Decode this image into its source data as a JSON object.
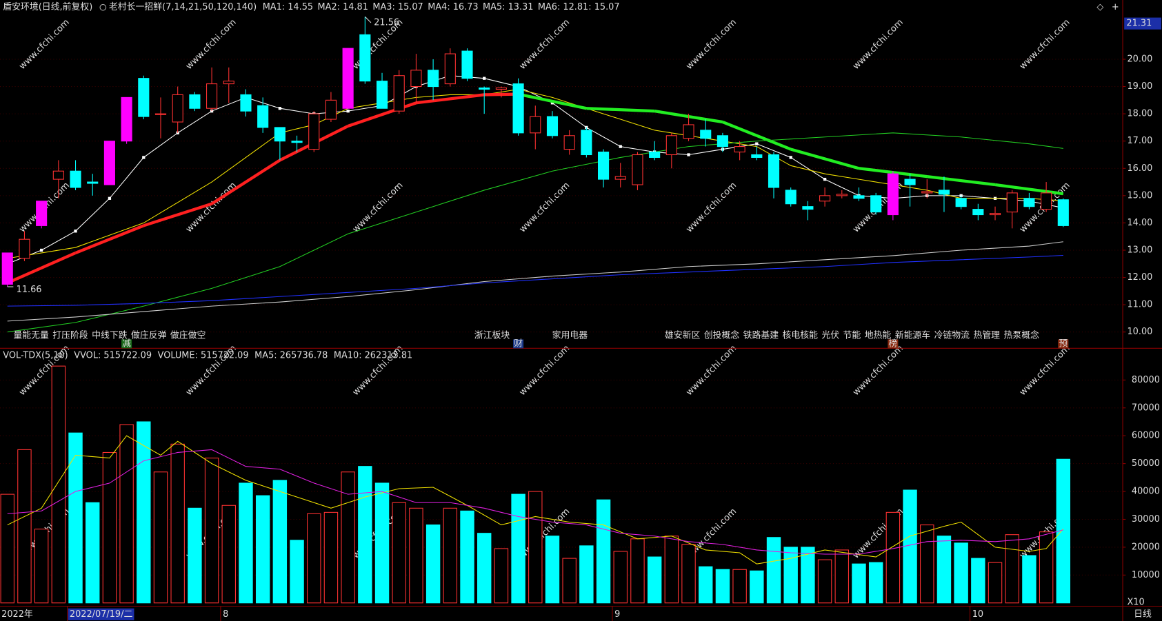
{
  "header": {
    "title": "盾安环境(日线,前复权)",
    "indicator": "老村长一招鲜(7,14,21,50,120,140)"
  },
  "watermark": "www.cfchi.com",
  "chart_data": [
    {
      "type": "candlestick",
      "up_color": "#ff3232",
      "down_color": "#00ffff",
      "limit_color": "#ff00ff",
      "limit_up": [
        0,
        2,
        6,
        7,
        20,
        52
      ],
      "open": [
        11.75,
        12.7,
        13.9,
        15.6,
        15.9,
        15.5,
        15.4,
        17.0,
        19.3,
        18.0,
        17.7,
        18.7,
        18.2,
        19.1,
        18.7,
        18.3,
        17.5,
        17.0,
        16.7,
        17.8,
        18.2,
        20.9,
        19.2,
        18.1,
        19.0,
        19.6,
        19.1,
        20.3,
        18.95,
        18.9,
        19.1,
        17.3,
        17.9,
        16.7,
        17.4,
        16.6,
        15.6,
        15.4,
        16.6,
        16.5,
        17.1,
        17.4,
        17.2,
        16.6,
        16.5,
        16.5,
        15.2,
        14.6,
        14.8,
        15.0,
        15.0,
        15.0,
        14.3,
        15.6,
        15.1,
        15.2,
        14.9,
        14.5,
        14.3,
        14.4,
        14.9,
        14.5,
        14.85
      ],
      "high": [
        12.9,
        13.7,
        14.8,
        16.3,
        16.3,
        15.8,
        17.0,
        18.6,
        19.4,
        18.6,
        19.0,
        18.8,
        19.7,
        19.7,
        18.9,
        18.6,
        17.5,
        17.2,
        18.1,
        18.8,
        20.4,
        21.56,
        19.5,
        19.6,
        20.2,
        20.0,
        20.4,
        20.4,
        19.0,
        19.0,
        19.3,
        18.3,
        18.1,
        17.4,
        17.5,
        16.7,
        16.2,
        16.6,
        17.0,
        17.3,
        18.0,
        17.8,
        17.3,
        17.0,
        16.8,
        16.6,
        15.3,
        14.8,
        15.3,
        15.2,
        15.3,
        15.1,
        15.9,
        15.8,
        15.6,
        15.7,
        15.0,
        14.7,
        14.6,
        15.2,
        15.1,
        15.5,
        14.9
      ],
      "low": [
        11.66,
        12.6,
        13.8,
        14.9,
        15.2,
        15.0,
        15.4,
        16.9,
        17.8,
        17.1,
        17.3,
        18.1,
        18.1,
        18.4,
        17.9,
        17.3,
        16.3,
        16.6,
        16.6,
        17.7,
        18.2,
        19.1,
        18.2,
        18.0,
        18.4,
        18.5,
        19.0,
        19.2,
        18.0,
        18.6,
        17.2,
        16.7,
        17.1,
        16.5,
        16.4,
        15.3,
        15.3,
        15.2,
        16.3,
        16.0,
        17.0,
        16.8,
        16.6,
        16.3,
        16.3,
        14.9,
        14.6,
        14.1,
        14.6,
        14.9,
        14.8,
        14.3,
        14.1,
        14.6,
        14.9,
        14.4,
        14.5,
        14.1,
        14.1,
        13.8,
        14.5,
        14.4,
        13.85
      ],
      "close": [
        12.9,
        13.4,
        14.8,
        15.9,
        15.3,
        15.45,
        17.0,
        18.6,
        17.9,
        18.0,
        18.7,
        18.2,
        19.1,
        19.2,
        18.1,
        17.5,
        17.0,
        16.95,
        18.0,
        18.5,
        20.4,
        19.2,
        18.2,
        19.4,
        19.6,
        19.0,
        20.2,
        19.3,
        18.9,
        18.95,
        17.3,
        17.9,
        17.2,
        17.2,
        16.5,
        15.6,
        15.7,
        16.5,
        16.4,
        17.2,
        17.6,
        17.1,
        16.8,
        16.8,
        16.4,
        15.3,
        14.7,
        14.5,
        15.0,
        15.05,
        14.9,
        14.4,
        15.8,
        15.4,
        15.15,
        15.05,
        14.6,
        14.3,
        14.35,
        15.1,
        14.6,
        15.1,
        13.9
      ],
      "series": [
        {
          "name": "MA1: 14.55",
          "color": "#ffffff",
          "dots": true,
          "x": [
            0,
            2,
            4,
            6,
            8,
            10,
            12,
            14,
            16,
            18,
            20,
            22,
            24,
            26,
            28,
            30,
            32,
            34,
            36,
            38,
            40,
            42,
            44,
            46,
            48,
            50,
            52,
            54,
            56,
            58,
            60,
            62
          ],
          "values": [
            12.5,
            13.0,
            13.7,
            14.9,
            16.4,
            17.3,
            18.1,
            18.6,
            18.2,
            18.0,
            18.1,
            18.3,
            19.0,
            19.4,
            19.3,
            19.0,
            18.4,
            17.5,
            16.8,
            16.6,
            16.5,
            16.7,
            16.9,
            16.4,
            15.6,
            15.0,
            14.9,
            15.0,
            15.0,
            14.9,
            14.8,
            14.55
          ]
        },
        {
          "name": "MA2: 14.81",
          "color": "#f0e000",
          "x": [
            0,
            4,
            8,
            12,
            14,
            16,
            18,
            20,
            22,
            24,
            26,
            28,
            30,
            32,
            34,
            36,
            38,
            40,
            42,
            44,
            46,
            48,
            50,
            52,
            54,
            56,
            58,
            60,
            62
          ],
          "values": [
            12.7,
            13.1,
            14.0,
            15.5,
            16.4,
            17.3,
            17.6,
            18.2,
            18.4,
            18.6,
            18.7,
            18.7,
            18.9,
            18.6,
            18.2,
            17.8,
            17.4,
            17.2,
            17.0,
            16.8,
            16.1,
            15.8,
            15.6,
            15.4,
            15.2,
            14.9,
            14.9,
            14.9,
            14.81
          ]
        },
        {
          "name": "MA3: 15.07",
          "color": "#ff2020",
          "down_color": "#22ee22",
          "trend_label": ": 15.07",
          "width": 4,
          "x": [
            0,
            4,
            8,
            12,
            16,
            20,
            24,
            28,
            30,
            34,
            38,
            42,
            46,
            50,
            54,
            58,
            62
          ],
          "values": [
            11.8,
            12.9,
            13.9,
            14.7,
            16.3,
            17.55,
            18.4,
            18.7,
            18.72,
            18.2,
            18.1,
            17.7,
            16.7,
            16.0,
            15.7,
            15.4,
            15.07
          ]
        },
        {
          "name": "MA4: 16.73",
          "color": "#22cc22",
          "x": [
            0,
            4,
            8,
            12,
            16,
            20,
            24,
            28,
            32,
            36,
            40,
            44,
            48,
            52,
            56,
            60,
            62
          ],
          "values": [
            10.0,
            10.35,
            10.95,
            11.6,
            12.4,
            13.6,
            14.4,
            15.2,
            15.9,
            16.4,
            16.8,
            17.0,
            17.15,
            17.3,
            17.15,
            16.9,
            16.73
          ]
        },
        {
          "name": "MA5: 13.31",
          "color": "#cccccc",
          "x": [
            0,
            4,
            8,
            12,
            16,
            20,
            24,
            28,
            32,
            36,
            40,
            44,
            48,
            52,
            56,
            60,
            62
          ],
          "values": [
            10.4,
            10.55,
            10.75,
            10.95,
            11.1,
            11.3,
            11.55,
            11.85,
            12.05,
            12.2,
            12.4,
            12.5,
            12.65,
            12.8,
            13.0,
            13.15,
            13.31
          ]
        },
        {
          "name": "MA6: 12.81",
          "color": "#2030ff",
          "x": [
            0,
            4,
            8,
            12,
            16,
            20,
            24,
            28,
            32,
            36,
            40,
            44,
            48,
            52,
            56,
            60,
            62
          ],
          "values": [
            10.95,
            10.98,
            11.05,
            11.15,
            11.3,
            11.45,
            11.6,
            11.8,
            11.95,
            12.1,
            12.2,
            12.3,
            12.4,
            12.55,
            12.65,
            12.75,
            12.81
          ]
        }
      ],
      "annotations": [
        {
          "x": 21,
          "value": 21.56
        },
        {
          "x": 0,
          "value": 11.66
        }
      ],
      "concepts": [
        "量能无量",
        "打压阶段",
        "中线下跌",
        "做庄反弹",
        "做庄做空",
        "浙江板块",
        "家用电器",
        "雄安新区",
        "创投概念",
        "铁路基建",
        "核电核能",
        "光伏",
        "节能",
        "地热能",
        "新能源车",
        "冷链物流",
        "热管理",
        "热泵概念"
      ],
      "badges": [
        "减",
        "财",
        "榜",
        "预"
      ],
      "ylim": [
        9.3,
        21.7
      ],
      "yticks": [
        {
          "value": 10,
          "label": "10.00"
        },
        {
          "value": 11,
          "label": "11.00"
        },
        {
          "value": 12,
          "label": "12.00"
        },
        {
          "value": 13,
          "label": "13.00"
        },
        {
          "value": 14,
          "label": "14.00"
        },
        {
          "value": 15,
          "label": "15.00"
        },
        {
          "value": 16,
          "label": "16.00"
        },
        {
          "value": 17,
          "label": "17.00"
        },
        {
          "value": 18,
          "label": "18.00"
        },
        {
          "value": 19,
          "label": "19.00"
        },
        {
          "value": 20,
          "label": "20.00"
        },
        21.31
      ],
      "grid": true
    },
    {
      "type": "volume",
      "title": "VOL-TDX(5,10)",
      "legend": [
        {
          "label": "VVOL: 515722.09",
          "color": "#dddddd"
        },
        {
          "label": "VOLUME: 515722.09",
          "color": "#f0e000"
        }
      ],
      "values": [
        39000,
        55000,
        26500,
        85000,
        61000,
        36000,
        54000,
        64000,
        65000,
        47000,
        57000,
        34000,
        52000,
        35000,
        43000,
        38500,
        44000,
        22500,
        32000,
        32500,
        47000,
        49000,
        43000,
        36000,
        34000,
        28000,
        34000,
        33000,
        25000,
        19500,
        39000,
        40000,
        24000,
        16000,
        20500,
        37000,
        18500,
        23000,
        16500,
        24000,
        21000,
        13000,
        12000,
        12000,
        11500,
        23500,
        20000,
        20000,
        15500,
        19000,
        14000,
        14500,
        32500,
        40500,
        28000,
        24000,
        21500,
        16000,
        14500,
        24500,
        17000,
        25500,
        51572.209
      ],
      "series": [
        {
          "name": "MA5: 265736.78",
          "color": "#f0e000",
          "x": [
            0,
            2,
            4,
            6,
            7,
            9,
            10,
            12,
            14,
            17,
            19,
            21,
            23,
            25,
            27,
            29,
            31,
            33,
            35,
            37,
            39,
            41,
            43,
            44,
            46,
            48,
            51,
            53,
            55,
            56,
            58,
            60,
            61,
            62
          ],
          "values": [
            28000,
            34000,
            53000,
            52000,
            60000,
            53000,
            58000,
            50000,
            44000,
            38000,
            34000,
            38000,
            41000,
            41500,
            35000,
            28000,
            31000,
            29000,
            28000,
            23000,
            24000,
            19000,
            18000,
            14000,
            16000,
            19000,
            16500,
            24000,
            27500,
            29000,
            20000,
            18500,
            19500,
            26573.678
          ]
        },
        {
          "name": "MA10: 262315.81",
          "color": "#e020e0",
          "x": [
            0,
            2,
            4,
            6,
            8,
            10,
            12,
            14,
            16,
            18,
            20,
            22,
            24,
            26,
            28,
            30,
            32,
            34,
            36,
            38,
            40,
            42,
            44,
            46,
            48,
            50,
            52,
            54,
            56,
            58,
            60,
            62
          ],
          "values": [
            32000,
            33000,
            40000,
            43000,
            51000,
            54000,
            55000,
            49000,
            48000,
            43000,
            39000,
            40000,
            36000,
            36000,
            34000,
            31000,
            29000,
            28000,
            25000,
            24000,
            22000,
            21000,
            19000,
            18000,
            17500,
            17500,
            19500,
            22000,
            22500,
            22000,
            23000,
            26231.581
          ]
        }
      ],
      "scale_label": "X10",
      "ylim": [
        0,
        90000
      ],
      "yticks": [
        10000,
        20000,
        30000,
        40000,
        50000,
        60000,
        70000,
        80000
      ]
    }
  ],
  "x_axis": {
    "xticks": [
      {
        "value": 0,
        "label": "2022年"
      },
      {
        "value": 4,
        "label": "2022/07/19/二"
      },
      {
        "value": 13,
        "label": "8"
      },
      {
        "value": 36,
        "label": "9"
      },
      {
        "value": 57,
        "label": "10"
      }
    ],
    "period": "日线"
  }
}
